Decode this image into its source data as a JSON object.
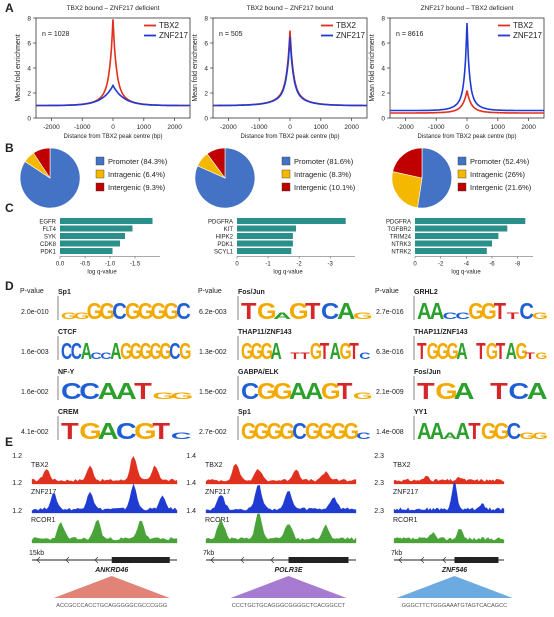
{
  "panel_letters": [
    "A",
    "B",
    "C",
    "D",
    "E"
  ],
  "colors": {
    "tbx2": "#e0301e",
    "znf217": "#1f3bd1",
    "rcor1": "#4aa338",
    "promoter": "#4472c4",
    "intragenic": "#f5b800",
    "intergenic": "#c00000",
    "go_bar": "#2a8f8a"
  },
  "panelA": {
    "ylabel": "Mean fold enrichment",
    "xlabel": "Distance from TBX2 peak centre (bp)",
    "xticks": [
      "-2000",
      "-1000",
      "0",
      "1000",
      "2000"
    ],
    "legend": [
      "TBX2",
      "ZNF217"
    ],
    "plots": [
      {
        "title": "TBX2 bound – ZNF217 deficient",
        "n": "n = 1028",
        "yticks": [
          "0",
          "2",
          "4",
          "6",
          "8"
        ]
      },
      {
        "title": "TBX2 bound – ZNF217 bound",
        "n": "n = 505",
        "yticks": [
          "0",
          "2",
          "4",
          "6",
          "8"
        ]
      },
      {
        "title": "ZNF217 bound – TBX2 deficient",
        "n": "n = 8616",
        "yticks": [
          "0",
          "2",
          "4",
          "6",
          "8"
        ]
      }
    ]
  },
  "panelB": [
    {
      "items": [
        {
          "label": "Promoter (84.3%)",
          "v": 84.3
        },
        {
          "label": "Intragenic (6.4%)",
          "v": 6.4
        },
        {
          "label": "Intergenic (9.3%)",
          "v": 9.3
        }
      ]
    },
    {
      "items": [
        {
          "label": "Promoter (81.6%)",
          "v": 81.6
        },
        {
          "label": "Intragenic (8.3%)",
          "v": 8.3
        },
        {
          "label": "Intergenic (10.1%)",
          "v": 10.1
        }
      ]
    },
    {
      "items": [
        {
          "label": "Promoter (52.4%)",
          "v": 52.4
        },
        {
          "label": "Intragenic (26%)",
          "v": 26
        },
        {
          "label": "Intergenic (21.6%)",
          "v": 21.6
        }
      ]
    }
  ],
  "panelC": {
    "xlabel": "log q-value",
    "plots": [
      {
        "genes": [
          "EGFR",
          "FLT4",
          "SYK",
          "CDK8",
          "PDK1"
        ],
        "values": [
          1.85,
          1.45,
          1.3,
          1.2,
          1.05
        ],
        "xmax": 2,
        "ticks": [
          "0.0",
          "-0.5",
          "-1.0",
          "-1.5"
        ],
        "tickvals": [
          0,
          0.5,
          1,
          1.5
        ]
      },
      {
        "genes": [
          "PDGFRA",
          "KIT",
          "HIPK2",
          "PDK1",
          "SCYL1"
        ],
        "values": [
          3.5,
          1.9,
          1.8,
          1.8,
          1.75
        ],
        "xmax": 3.8,
        "ticks": [
          "0",
          "-1",
          "-2",
          "-3"
        ],
        "tickvals": [
          0,
          1,
          2,
          3
        ]
      },
      {
        "genes": [
          "PDGFRA",
          "TGFBR2",
          "TRIM24",
          "NTRK3",
          "NTRK2"
        ],
        "values": [
          8.6,
          7.2,
          6.5,
          6.0,
          5.6
        ],
        "xmax": 9.2,
        "ticks": [
          "0",
          "-2",
          "-4",
          "-6",
          "-8"
        ],
        "tickvals": [
          0,
          2,
          4,
          6,
          8
        ]
      }
    ]
  },
  "panelD": {
    "pheader": "P-value",
    "columns": [
      [
        {
          "name": "Sp1",
          "p": "2.0e-010",
          "seq": "GGGGCGGGGC",
          "big": [
            0,
            0,
            1,
            1,
            1,
            1,
            1,
            1,
            1,
            1
          ]
        },
        {
          "name": "CTCF",
          "p": "1.6e-003",
          "seq": "CCACCAGGGGGCG",
          "big": [
            1,
            1,
            1,
            0,
            0,
            1,
            1,
            1,
            1,
            1,
            1,
            1,
            1
          ]
        },
        {
          "name": "NF-Y",
          "p": "1.6e-002",
          "seq": "CCAATGG",
          "big": [
            1,
            1,
            1,
            1,
            1,
            0,
            0
          ]
        },
        {
          "name": "CREM",
          "p": "4.1e-002",
          "seq": "TGACGTC",
          "big": [
            1,
            1,
            1,
            1,
            1,
            1,
            0
          ]
        }
      ],
      [
        {
          "name": "Fos/Jun",
          "p": "6.2e-003",
          "seq": "TGaGTCAG",
          "big": [
            1,
            1,
            0,
            1,
            1,
            1,
            1,
            0
          ]
        },
        {
          "name": "THAP11/ZNF143",
          "p": "1.3e-002",
          "seq": "GGGA TTGTAGTC",
          "big": [
            1,
            1,
            1,
            1,
            0,
            0,
            0,
            1,
            1,
            1,
            1,
            1
          ]
        },
        {
          "name": "GABPA/ELK",
          "p": "1.5e-002",
          "seq": "CGGAAGTG",
          "big": [
            1,
            1,
            1,
            1,
            1,
            1,
            1,
            0
          ]
        },
        {
          "name": "Sp1",
          "p": "2.7e-002",
          "seq": "GGGGCGGGGC",
          "big": [
            1,
            1,
            1,
            1,
            1,
            1,
            1,
            1,
            1,
            0
          ]
        }
      ],
      [
        {
          "name": "GRHL2",
          "p": "2.7e-016",
          "seq": "AACCGGTTCG",
          "big": [
            1,
            1,
            0,
            0,
            1,
            1,
            1,
            0,
            1,
            0
          ]
        },
        {
          "name": "THAP11/ZNF143",
          "p": "6.3e-016",
          "seq": "TGGGA TGTAGTG",
          "big": [
            1,
            1,
            1,
            1,
            1,
            0,
            1,
            1,
            1,
            1,
            1,
            0
          ]
        },
        {
          "name": "Fos/Jun",
          "p": "2.1e-009",
          "seq": "TGA TCA",
          "big": [
            1,
            1,
            1,
            0,
            1,
            1,
            1
          ]
        },
        {
          "name": "YY1",
          "p": "1.4e-008",
          "seq": "AAAATGGCGG",
          "big": [
            1,
            1,
            0,
            1,
            1,
            1,
            1,
            1,
            0,
            0
          ]
        }
      ]
    ]
  },
  "panelE": [
    {
      "scales": [
        "1.2",
        "1.2",
        "1.2"
      ],
      "tracks": [
        "TBX2",
        "ZNF217",
        "RCOR1"
      ],
      "kb": "15kb",
      "gene": "ANKRD46",
      "seq": "ACCGCCCACCTGCAGGGGGCGCCCGGG"
    },
    {
      "scales": [
        "1.4",
        "1.4",
        "1.4"
      ],
      "tracks": [
        "TBX2",
        "ZNF217",
        "RCOR1"
      ],
      "kb": "7kb",
      "gene": "POLR3E",
      "seq": "CCCTGCTGCAGGGCGGGGCTCACGGCCT"
    },
    {
      "scales": [
        "2.3",
        "2.3",
        "2.3"
      ],
      "tracks": [
        "TBX2",
        "ZNF217",
        "RCOR1"
      ],
      "kb": "7kb",
      "gene": "ZNF546",
      "seq": "GGGCTTCTGGGAAATGTAGTCACAGCC"
    }
  ]
}
